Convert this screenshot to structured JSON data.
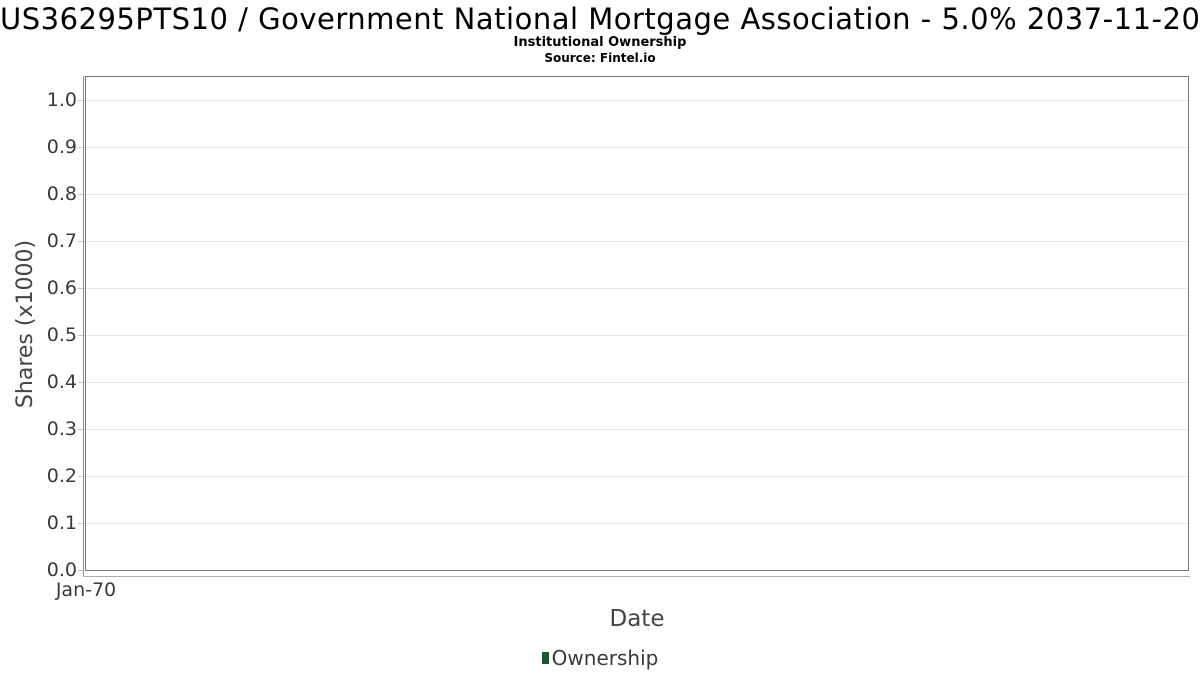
{
  "chart_data": {
    "type": "line",
    "title": "US36295PTS10 / Government National Mortgage Association - 5.0% 2037-11-20",
    "subtitle": "Institutional Ownership",
    "source": "Source: Fintel.io",
    "xlabel": "Date",
    "ylabel": "Shares (x1000)",
    "x_tick_labels": [
      "Jan-70"
    ],
    "y_ticks": [
      0.0,
      0.1,
      0.2,
      0.3,
      0.4,
      0.5,
      0.6,
      0.7,
      0.8,
      0.9,
      1.0
    ],
    "y_tick_labels": [
      "0.0",
      "0.1",
      "0.2",
      "0.3",
      "0.4",
      "0.5",
      "0.6",
      "0.7",
      "0.8",
      "0.9",
      "1.0"
    ],
    "ylim": [
      0.0,
      1.05
    ],
    "grid": "horizontal-only",
    "legend_position": "bottom-center",
    "series": [
      {
        "name": "Ownership",
        "color": "#1d5632",
        "x": [],
        "values": []
      }
    ]
  },
  "colors": {
    "background": "#ffffff",
    "plot_border": "#757575",
    "gridline": "#e6e6e6",
    "axis_line": "#8c8c8c",
    "tick_label": "#3a3a3a",
    "axis_title": "#454545",
    "legend_marker": "#1d5632"
  }
}
